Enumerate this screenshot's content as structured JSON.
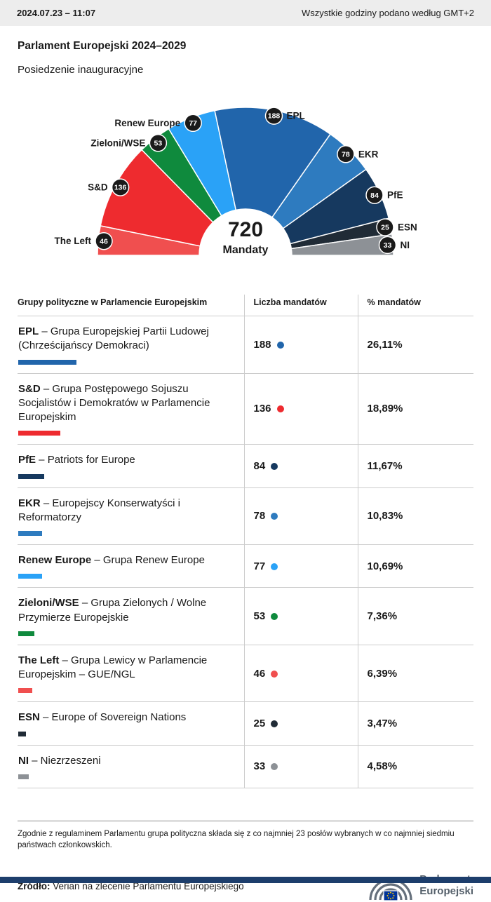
{
  "topbar": {
    "datetime": "2024.07.23 – 11:07",
    "timezone_note": "Wszystkie godziny podano według GMT+2"
  },
  "header": {
    "title": "Parlament Europejski 2024–2029",
    "subtitle": "Posiedzenie inauguracyjne"
  },
  "chart_data": {
    "type": "pie",
    "variant": "hemicycle-half-donut",
    "title": "Parlament Europejski 2024–2029 – Posiedzenie inauguracyjne",
    "center_value": "720",
    "center_label": "Mandaty",
    "total_seats": 720,
    "legend_position": "around-arc",
    "groups": [
      {
        "label": "The Left",
        "seats": 46,
        "percent": "6,39%",
        "color": "#f04f4f"
      },
      {
        "label": "S&D",
        "seats": 136,
        "percent": "18,89%",
        "color": "#ee2b2f"
      },
      {
        "label": "Zieloni/WSE",
        "seats": 53,
        "percent": "7,36%",
        "color": "#0f8a3d"
      },
      {
        "label": "Renew Europe",
        "seats": 77,
        "percent": "10,69%",
        "color": "#2aa2f7"
      },
      {
        "label": "EPL",
        "seats": 188,
        "percent": "26,11%",
        "color": "#2165ab"
      },
      {
        "label": "EKR",
        "seats": 78,
        "percent": "10,83%",
        "color": "#2e7bbf"
      },
      {
        "label": "PfE",
        "seats": 84,
        "percent": "11,67%",
        "color": "#16395f"
      },
      {
        "label": "ESN",
        "seats": 25,
        "percent": "3,47%",
        "color": "#202b36"
      },
      {
        "label": "NI",
        "seats": 33,
        "percent": "4,58%",
        "color": "#8d9196"
      }
    ]
  },
  "table": {
    "headers": [
      "Grupy polityczne w Parlamencie Europejskim",
      "Liczba mandatów",
      "% mandatów"
    ],
    "rows": [
      {
        "abbr": "EPL",
        "desc": "– Grupa Europejskiej Partii Ludowej (Chrześcijańscy Demokraci)",
        "seats": 188,
        "percent": "26,11%",
        "color": "#2165ab"
      },
      {
        "abbr": "S&D",
        "desc": "– Grupa Postępowego Sojuszu Socjalistów i Demokratów w Parlamencie Europejskim",
        "seats": 136,
        "percent": "18,89%",
        "color": "#ee2b2f"
      },
      {
        "abbr": "PfE",
        "desc": "– Patriots for Europe",
        "seats": 84,
        "percent": "11,67%",
        "color": "#16395f"
      },
      {
        "abbr": "EKR",
        "desc": "– Europejscy Konserwatyści i Reformatorzy",
        "seats": 78,
        "percent": "10,83%",
        "color": "#2e7bbf"
      },
      {
        "abbr": "Renew Europe",
        "desc": "– Grupa Renew Europe",
        "seats": 77,
        "percent": "10,69%",
        "color": "#2aa2f7"
      },
      {
        "abbr": "Zieloni/WSE",
        "desc": "– Grupa Zielonych / Wolne Przymierze Europejskie",
        "seats": 53,
        "percent": "7,36%",
        "color": "#0f8a3d"
      },
      {
        "abbr": "The Left",
        "desc": "– Grupa Lewicy w Parlamencie Europejskim – GUE/NGL",
        "seats": 46,
        "percent": "6,39%",
        "color": "#f04f4f"
      },
      {
        "abbr": "ESN",
        "desc": "– Europe of Sovereign Nations",
        "seats": 25,
        "percent": "3,47%",
        "color": "#202b36"
      },
      {
        "abbr": "NI",
        "desc": "– Niezrzeszeni",
        "seats": 33,
        "percent": "4,58%",
        "color": "#8d9196"
      }
    ]
  },
  "footer": {
    "note": "Zgodnie z regulaminem Parlamentu grupa polityczna składa się z co najmniej 23 posłów wybranych w co najmniej siedmiu państwach członkowskich.",
    "source_label": "Źródło:",
    "source_text": " Verian na zlecenie Parlamentu Europejskiego",
    "logo_line1": "Parlament",
    "logo_line2": "Europejski"
  }
}
